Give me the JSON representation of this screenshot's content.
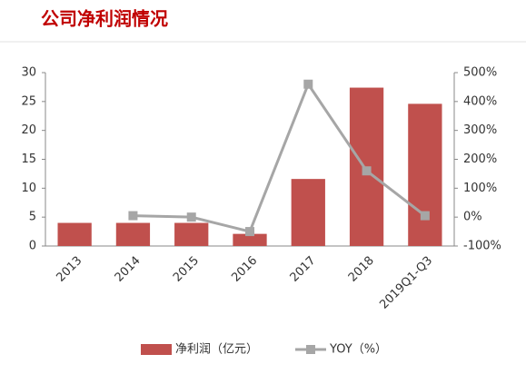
{
  "chart_data": {
    "type": "bar-line",
    "title": "公司净利润情况",
    "categories": [
      "2013",
      "2014",
      "2015",
      "2016",
      "2017",
      "2018",
      "2019Q1-Q3"
    ],
    "series": [
      {
        "name": "净利润（亿元）",
        "type": "bar",
        "color": "#c0504d",
        "values": [
          4.0,
          4.0,
          4.0,
          2.1,
          11.6,
          27.4,
          24.6
        ]
      },
      {
        "name": "YOY（%）",
        "type": "line",
        "axis": "y2",
        "color": "#a6a6a6",
        "values": [
          null,
          5,
          0,
          -50,
          460,
          160,
          5
        ]
      }
    ],
    "ylim": [
      0,
      30
    ],
    "yticks": [
      0,
      5,
      10,
      15,
      20,
      25,
      30
    ],
    "y2lim": [
      -100,
      500
    ],
    "y2ticks": [
      {
        "value": -100,
        "label": "-100%"
      },
      {
        "value": 0,
        "label": "0%"
      },
      {
        "value": 100,
        "label": "100%"
      },
      {
        "value": 200,
        "label": "200%"
      },
      {
        "value": 300,
        "label": "300%"
      },
      {
        "value": 400,
        "label": "400%"
      },
      {
        "value": 500,
        "label": "500%"
      }
    ],
    "legend": "bottom"
  }
}
